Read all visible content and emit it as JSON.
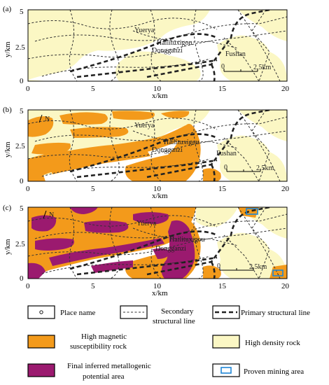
{
  "panels": [
    {
      "label": "(a)",
      "places": [
        "Yuerya",
        "Hailituxigou",
        "Dongganzi",
        "Fushan"
      ],
      "scale_label": "2.5km",
      "x_ticks": [
        "0",
        "5",
        "10",
        "15",
        "20"
      ],
      "y_ticks": [
        "5",
        "2.5",
        "0"
      ],
      "xlabel": "x/km",
      "ylabel": "y/km"
    },
    {
      "label": "(b)",
      "places": [
        "Yuerya",
        "Hailituxigou",
        "Dongganzi",
        "Fushan"
      ],
      "scale_label": "2.5km",
      "x_ticks": [
        "0",
        "5",
        "10",
        "15",
        "20"
      ],
      "y_ticks": [
        "5",
        "2.5",
        "0"
      ],
      "xlabel": "x/km",
      "ylabel": "y/km"
    },
    {
      "label": "(c)",
      "places": [
        "Yuerya",
        "Hailituxigou",
        "Dongganzi"
      ],
      "scale_label": "2.5km",
      "x_ticks": [
        "0",
        "5",
        "10",
        "15",
        "20"
      ],
      "y_ticks": [
        "5",
        "2.5",
        "0"
      ],
      "xlabel": "x/km",
      "ylabel": "y/km"
    }
  ],
  "north_label": "N",
  "legend": {
    "place_name": "Place name",
    "secondary_line_1": "Secondary",
    "secondary_line_2": "structural line",
    "primary_line": "Primary structural line",
    "magnetic_1": "High magnetic",
    "magnetic_2": "susceptibility rock",
    "density": "High density rock",
    "potential_1": "Final inferred metallogenic",
    "potential_2": "potential area",
    "mining": "Proven mining area"
  },
  "colors": {
    "density": "#fbf7c4",
    "magnetic": "#f39a1b",
    "potential": "#9b1a6f",
    "mining": "#1f86d6",
    "background": "#ffffff"
  }
}
